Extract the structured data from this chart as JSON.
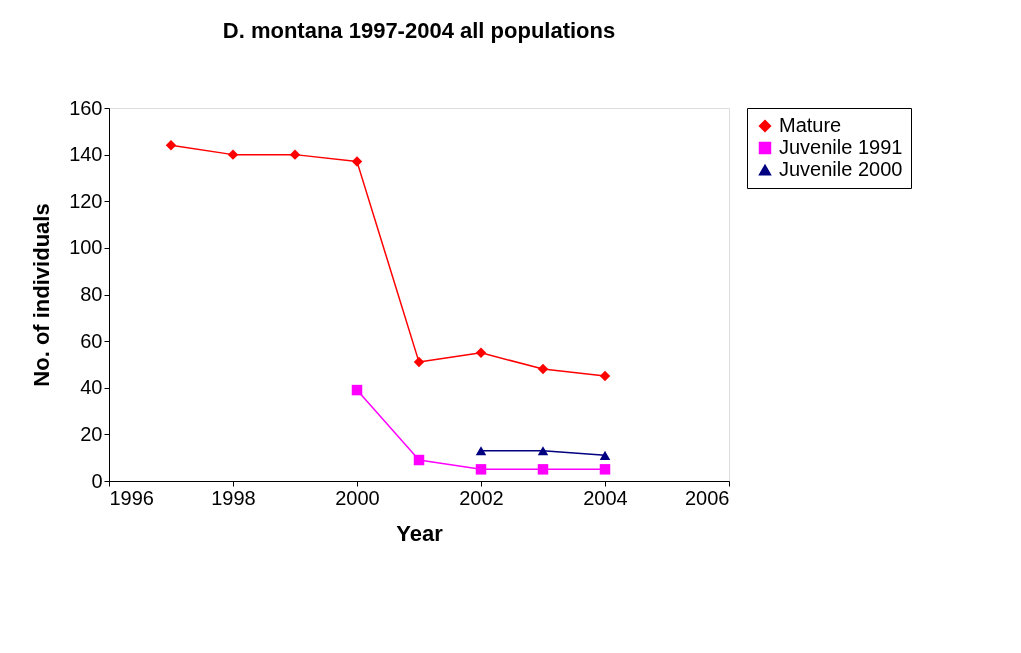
{
  "chart_data": {
    "type": "line",
    "title": "D. montana 1997-2004 all populations",
    "xlabel": "Year",
    "ylabel": "No. of individuals",
    "xlim": [
      1996,
      2006
    ],
    "xticks": [
      1996,
      1998,
      2000,
      2002,
      2004,
      2006
    ],
    "ylim": [
      0,
      160
    ],
    "yticks": [
      0,
      20,
      40,
      60,
      80,
      100,
      120,
      140,
      160
    ],
    "grid": false,
    "legend": "right",
    "series": [
      {
        "name": "Mature",
        "color": "#ff0000",
        "marker": "diamond",
        "x": [
          1997,
          1998,
          1999,
          2000,
          2001,
          2002,
          2003,
          2004
        ],
        "values": [
          144,
          140,
          140,
          137,
          51,
          55,
          48,
          45
        ]
      },
      {
        "name": "Juvenile 1991",
        "color": "#ff00ff",
        "marker": "square",
        "x": [
          2000,
          2001,
          2002,
          2003,
          2004
        ],
        "values": [
          39,
          9,
          5,
          5,
          5
        ]
      },
      {
        "name": "Juvenile 2000",
        "color": "#000080",
        "marker": "triangle",
        "x": [
          2002,
          2003,
          2004
        ],
        "values": [
          13,
          13,
          11
        ]
      }
    ]
  }
}
